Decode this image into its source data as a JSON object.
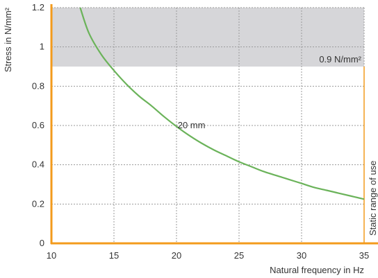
{
  "chart_data": {
    "type": "line",
    "xlabel": "Natural frequency in Hz",
    "ylabel": "Stress in N/mm²",
    "xlim": [
      10,
      35
    ],
    "ylim": [
      0,
      1.2
    ],
    "x_ticks": [
      "10",
      "15",
      "20",
      "25",
      "30",
      "35"
    ],
    "y_ticks": [
      "0",
      "0.2",
      "0.4",
      "0.6",
      "0.8",
      "1",
      "1.2"
    ],
    "grid": true,
    "series": [
      {
        "name": "20 mm",
        "x": [
          12.3,
          13,
          14,
          15,
          16,
          17,
          18,
          19,
          20,
          21,
          22,
          23,
          24,
          25,
          26,
          27,
          28,
          29,
          30,
          31,
          32,
          33,
          34,
          35
        ],
        "y": [
          1.2,
          1.07,
          0.96,
          0.88,
          0.81,
          0.75,
          0.7,
          0.645,
          0.595,
          0.55,
          0.51,
          0.475,
          0.445,
          0.415,
          0.39,
          0.365,
          0.345,
          0.325,
          0.305,
          0.285,
          0.27,
          0.255,
          0.24,
          0.225
        ]
      }
    ],
    "shaded_region": {
      "y_from": 0.9,
      "y_to": 1.2,
      "label": "0.9 N/mm²"
    },
    "side_label": "Static range of use",
    "colors": {
      "curve": "#6bb35a",
      "accent": "#f39b1c",
      "shade": "#d6d6d9",
      "grid": "#9a9a9a"
    }
  }
}
